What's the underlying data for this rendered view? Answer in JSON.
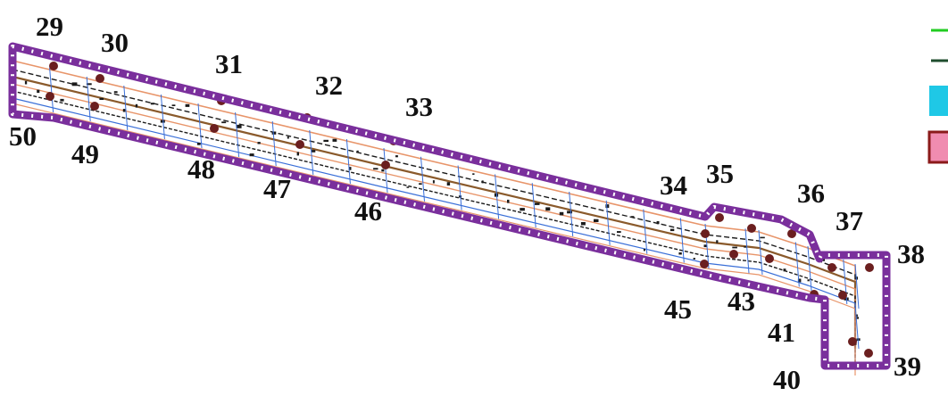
{
  "map": {
    "colors": {
      "boundary": "#7a2f9c",
      "boundary_dash": "#ffffff",
      "orange_lines": "#e8956a",
      "blue_lines": "#3a6fd8",
      "dark_lines": "#1b1b1b",
      "brown_lines": "#8a5a2b",
      "points": "#6b1f1f",
      "legend_green": "#22cc22",
      "legend_darkgreen": "#1f4d2e",
      "legend_cyan": "#1fc8e6",
      "legend_pink": "#f08cb0",
      "legend_pink_border": "#8b1a1a"
    },
    "labels": [
      "29",
      "30",
      "31",
      "32",
      "33",
      "34",
      "35",
      "36",
      "37",
      "38",
      "39",
      "40",
      "41",
      "43",
      "45",
      "46",
      "47",
      "48",
      "49",
      "50"
    ],
    "legend": [
      {
        "symbol": "line",
        "icon": "green-line-icon"
      },
      {
        "symbol": "line",
        "icon": "dark-green-line-icon"
      },
      {
        "symbol": "fill",
        "icon": "cyan-fill-icon"
      },
      {
        "symbol": "fill",
        "icon": "pink-fill-icon"
      }
    ]
  }
}
